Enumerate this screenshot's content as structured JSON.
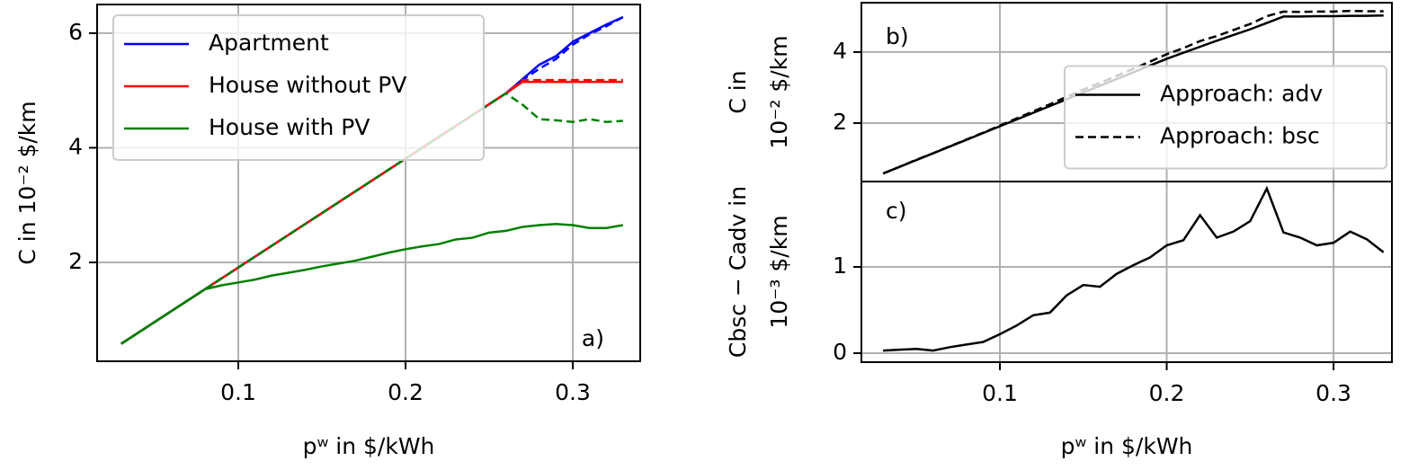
{
  "chart_data": [
    {
      "type": "line",
      "annotation": "a)",
      "xlabel": "pʷ in $/kWh",
      "ylabel": [
        "C in 10⁻² $/km"
      ],
      "x": [
        0.03,
        0.04,
        0.05,
        0.06,
        0.07,
        0.08,
        0.09,
        0.1,
        0.11,
        0.12,
        0.13,
        0.14,
        0.15,
        0.16,
        0.17,
        0.18,
        0.19,
        0.2,
        0.21,
        0.22,
        0.23,
        0.24,
        0.25,
        0.26,
        0.27,
        0.28,
        0.29,
        0.3,
        0.31,
        0.32,
        0.33
      ],
      "xlim": [
        0.0156,
        0.3403
      ],
      "ylim": [
        0.275,
        6.5
      ],
      "xticks": [
        0.1,
        0.2,
        0.3
      ],
      "yticks": [
        2,
        4,
        6
      ],
      "grid": true,
      "legend": "upper left",
      "series": [
        {
          "name": "Apartment",
          "color": "#0000ff",
          "values": [
            0.58,
            0.77,
            0.96,
            1.15,
            1.34,
            1.53,
            1.72,
            1.91,
            2.1,
            2.29,
            2.48,
            2.67,
            2.86,
            3.05,
            3.24,
            3.43,
            3.62,
            3.81,
            4.0,
            4.19,
            4.38,
            4.57,
            4.76,
            4.95,
            5.2,
            5.45,
            5.6,
            5.85,
            6.0,
            6.15,
            6.28
          ],
          "values_bsc": [
            0.58,
            0.77,
            0.96,
            1.15,
            1.34,
            1.53,
            1.72,
            1.91,
            2.1,
            2.29,
            2.48,
            2.67,
            2.86,
            3.05,
            3.24,
            3.43,
            3.62,
            3.81,
            4.0,
            4.19,
            4.38,
            4.57,
            4.76,
            4.95,
            5.18,
            5.38,
            5.55,
            5.8,
            5.98,
            6.12,
            6.28
          ]
        },
        {
          "name": "House without PV",
          "color": "#ff0000",
          "values": [
            0.58,
            0.77,
            0.96,
            1.15,
            1.34,
            1.53,
            1.72,
            1.91,
            2.1,
            2.29,
            2.48,
            2.67,
            2.86,
            3.05,
            3.24,
            3.43,
            3.62,
            3.81,
            4.0,
            4.19,
            4.38,
            4.57,
            4.76,
            4.95,
            5.15,
            5.15,
            5.15,
            5.15,
            5.15,
            5.15,
            5.15
          ],
          "values_bsc": [
            0.58,
            0.77,
            0.96,
            1.15,
            1.34,
            1.53,
            1.72,
            1.91,
            2.1,
            2.29,
            2.48,
            2.67,
            2.86,
            3.05,
            3.24,
            3.43,
            3.62,
            3.81,
            4.0,
            4.19,
            4.38,
            4.57,
            4.76,
            4.95,
            5.18,
            5.18,
            5.18,
            5.18,
            5.18,
            5.18,
            5.18
          ]
        },
        {
          "name": "House with PV",
          "color": "#008000",
          "values": [
            0.58,
            0.77,
            0.96,
            1.15,
            1.34,
            1.53,
            1.6,
            1.65,
            1.7,
            1.77,
            1.82,
            1.87,
            1.93,
            1.98,
            2.03,
            2.1,
            2.17,
            2.23,
            2.28,
            2.32,
            2.4,
            2.43,
            2.52,
            2.55,
            2.62,
            2.65,
            2.67,
            2.65,
            2.6,
            2.6,
            2.65
          ],
          "values_bsc": [
            0.58,
            0.77,
            0.96,
            1.15,
            1.34,
            1.53,
            1.72,
            1.91,
            2.1,
            2.29,
            2.48,
            2.67,
            2.86,
            3.05,
            3.24,
            3.43,
            3.62,
            3.81,
            4.0,
            4.19,
            4.38,
            4.57,
            4.76,
            4.95,
            4.75,
            4.5,
            4.48,
            4.45,
            4.5,
            4.45,
            4.47
          ]
        }
      ]
    },
    {
      "type": "line",
      "annotation": "b)",
      "ylabel": [
        "C in",
        "10⁻² $/km"
      ],
      "x": [
        0.03,
        0.04,
        0.05,
        0.06,
        0.07,
        0.08,
        0.09,
        0.1,
        0.11,
        0.12,
        0.13,
        0.14,
        0.15,
        0.16,
        0.17,
        0.18,
        0.19,
        0.2,
        0.21,
        0.22,
        0.23,
        0.24,
        0.25,
        0.26,
        0.27,
        0.28,
        0.29,
        0.3,
        0.31,
        0.32,
        0.33
      ],
      "xlim": [
        0.017,
        0.335
      ],
      "ylim": [
        0.354,
        5.39
      ],
      "xticks": [
        0.1,
        0.2,
        0.3
      ],
      "xtick_labels": false,
      "yticks": [
        2,
        4
      ],
      "grid": true,
      "legend": "center right",
      "series": [
        {
          "name": "Approach: adv",
          "color": "#000000",
          "dashed": false,
          "values": [
            0.58,
            0.77,
            0.96,
            1.15,
            1.34,
            1.53,
            1.72,
            1.91,
            2.1,
            2.29,
            2.48,
            2.67,
            2.86,
            3.05,
            3.24,
            3.43,
            3.62,
            3.81,
            3.98,
            4.15,
            4.32,
            4.48,
            4.64,
            4.82,
            5.0,
            5.0,
            5.01,
            5.01,
            5.02,
            5.02,
            5.03
          ]
        },
        {
          "name": "Approach: bsc",
          "color": "#000000",
          "dashed": true,
          "values": [
            0.58,
            0.77,
            0.97,
            1.15,
            1.35,
            1.54,
            1.73,
            1.93,
            2.13,
            2.33,
            2.53,
            2.74,
            2.94,
            3.13,
            3.33,
            3.53,
            3.73,
            3.94,
            4.11,
            4.31,
            4.45,
            4.62,
            4.79,
            5.01,
            5.14,
            5.13,
            5.14,
            5.14,
            5.16,
            5.15,
            5.15
          ]
        }
      ]
    },
    {
      "type": "line",
      "annotation": "c)",
      "xlabel": "pʷ in $/kWh",
      "ylabel": [
        "Cbsc − Cadv in",
        "10⁻³ $/km"
      ],
      "x": [
        0.03,
        0.04,
        0.05,
        0.06,
        0.07,
        0.08,
        0.09,
        0.1,
        0.11,
        0.12,
        0.13,
        0.14,
        0.15,
        0.16,
        0.17,
        0.18,
        0.19,
        0.2,
        0.21,
        0.22,
        0.23,
        0.24,
        0.25,
        0.26,
        0.27,
        0.28,
        0.29,
        0.3,
        0.31,
        0.32,
        0.33
      ],
      "xlim": [
        0.017,
        0.335
      ],
      "ylim": [
        -0.104,
        1.99
      ],
      "xticks": [
        0.1,
        0.2,
        0.3
      ],
      "yticks": [
        0,
        1
      ],
      "grid": true,
      "series": [
        {
          "color": "#000000",
          "values": [
            0.03,
            0.04,
            0.05,
            0.03,
            0.07,
            0.1,
            0.13,
            0.22,
            0.32,
            0.44,
            0.47,
            0.67,
            0.79,
            0.77,
            0.92,
            1.02,
            1.11,
            1.25,
            1.31,
            1.6,
            1.34,
            1.41,
            1.53,
            1.91,
            1.4,
            1.34,
            1.25,
            1.28,
            1.41,
            1.32,
            1.17
          ]
        }
      ]
    }
  ]
}
